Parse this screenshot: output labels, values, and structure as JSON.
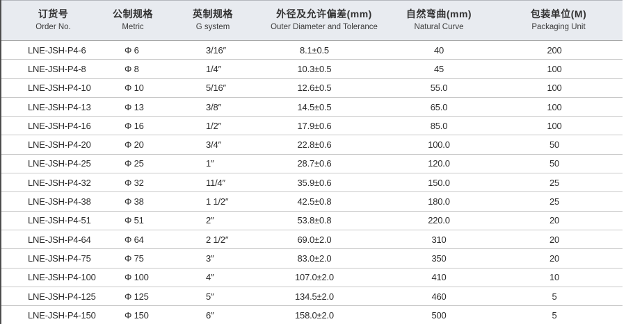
{
  "table": {
    "columns": [
      {
        "zh": "订货号",
        "en": "Order No."
      },
      {
        "zh": "公制规格",
        "en": "Metric"
      },
      {
        "zh": "英制规格",
        "en": "G system"
      },
      {
        "zh": "外径及允许偏差(mm)",
        "en": "Outer Diameter and Tolerance"
      },
      {
        "zh": "自然弯曲(mm)",
        "en": "Natural Curve"
      },
      {
        "zh": "包装单位(M)",
        "en": "Packaging Unit"
      }
    ],
    "rows": [
      [
        "LNE-JSH-P4-6",
        "Φ 6",
        "3/16″",
        "8.1±0.5",
        "40",
        "200"
      ],
      [
        "LNE-JSH-P4-8",
        "Φ 8",
        "1/4″",
        "10.3±0.5",
        "45",
        "100"
      ],
      [
        "LNE-JSH-P4-10",
        "Φ 10",
        "5/16″",
        "12.6±0.5",
        "55.0",
        "100"
      ],
      [
        "LNE-JSH-P4-13",
        "Φ 13",
        "3/8″",
        "14.5±0.5",
        "65.0",
        "100"
      ],
      [
        "LNE-JSH-P4-16",
        "Φ 16",
        "1/2″",
        "17.9±0.6",
        "85.0",
        "100"
      ],
      [
        "LNE-JSH-P4-20",
        "Φ 20",
        "3/4″",
        "22.8±0.6",
        "100.0",
        "50"
      ],
      [
        "LNE-JSH-P4-25",
        "Φ 25",
        "1″",
        "28.7±0.6",
        "120.0",
        "50"
      ],
      [
        "LNE-JSH-P4-32",
        "Φ 32",
        "11/4″",
        "35.9±0.6",
        "150.0",
        "25"
      ],
      [
        "LNE-JSH-P4-38",
        "Φ 38",
        "1 1/2″",
        "42.5±0.8",
        "180.0",
        "25"
      ],
      [
        "LNE-JSH-P4-51",
        "Φ 51",
        "2″",
        "53.8±0.8",
        "220.0",
        "20"
      ],
      [
        "LNE-JSH-P4-64",
        "Φ 64",
        "2 1/2″",
        "69.0±2.0",
        "310",
        "20"
      ],
      [
        "LNE-JSH-P4-75",
        "Φ 75",
        "3″",
        "83.0±2.0",
        "350",
        "20"
      ],
      [
        "LNE-JSH-P4-100",
        "Φ 100",
        "4″",
        "107.0±2.0",
        "410",
        "10"
      ],
      [
        "LNE-JSH-P4-125",
        "Φ 125",
        "5″",
        "134.5±2.0",
        "460",
        "5"
      ],
      [
        "LNE-JSH-P4-150",
        "Φ 150",
        "6″",
        "158.0±2.0",
        "500",
        "5"
      ]
    ],
    "colors": {
      "header_bg": "#e8ebf0",
      "row_line": "#c8c8c8",
      "left_border": "#4d4d4d",
      "text": "#2c2c2c"
    }
  }
}
